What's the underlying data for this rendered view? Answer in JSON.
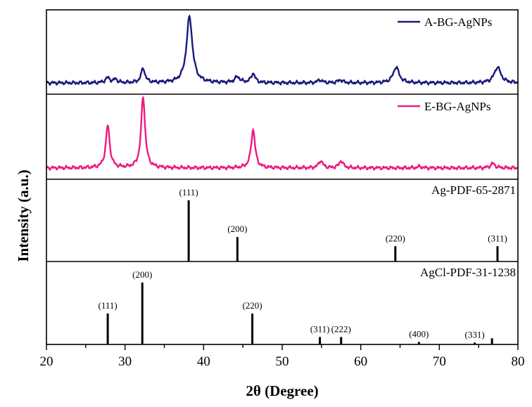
{
  "chart_data": {
    "type": "line",
    "xlabel": "2θ (Degree)",
    "ylabel": "Intensity (a.u.)",
    "xlim": [
      20,
      80
    ],
    "x_ticks": [
      20,
      30,
      40,
      50,
      60,
      70,
      80
    ],
    "panels": [
      {
        "name": "A-BG-AgNPs",
        "kind": "pattern",
        "color": "#1a1a7a",
        "baseline": 0.04,
        "peaks": [
          {
            "x": 27.8,
            "h": 0.07,
            "w": 0.35
          },
          {
            "x": 28.8,
            "h": 0.05,
            "w": 0.25
          },
          {
            "x": 32.3,
            "h": 0.2,
            "w": 0.3
          },
          {
            "x": 38.2,
            "h": 0.92,
            "w": 0.45
          },
          {
            "x": 44.3,
            "h": 0.08,
            "w": 0.4
          },
          {
            "x": 46.3,
            "h": 0.13,
            "w": 0.3
          },
          {
            "x": 54.8,
            "h": 0.04,
            "w": 0.35
          },
          {
            "x": 57.4,
            "h": 0.04,
            "w": 0.35
          },
          {
            "x": 64.5,
            "h": 0.22,
            "w": 0.45
          },
          {
            "x": 77.4,
            "h": 0.22,
            "w": 0.5
          }
        ]
      },
      {
        "name": "E-BG-AgNPs",
        "kind": "pattern",
        "color": "#ee1a82",
        "baseline": 0.04,
        "peaks": [
          {
            "x": 27.8,
            "h": 0.58,
            "w": 0.3
          },
          {
            "x": 32.3,
            "h": 0.98,
            "w": 0.3
          },
          {
            "x": 46.3,
            "h": 0.53,
            "w": 0.3
          },
          {
            "x": 54.9,
            "h": 0.1,
            "w": 0.3
          },
          {
            "x": 57.5,
            "h": 0.1,
            "w": 0.3
          },
          {
            "x": 67.5,
            "h": 0.02,
            "w": 0.3
          },
          {
            "x": 76.8,
            "h": 0.06,
            "w": 0.35
          }
        ]
      },
      {
        "name": "Ag-PDF-65-2871",
        "kind": "sticks",
        "color": "#000000",
        "sticks": [
          {
            "x": 38.1,
            "h": 100,
            "label": "(111)"
          },
          {
            "x": 44.3,
            "h": 40,
            "label": "(200)"
          },
          {
            "x": 64.4,
            "h": 25,
            "label": "(220)"
          },
          {
            "x": 77.4,
            "h": 25,
            "label": "(311)"
          }
        ]
      },
      {
        "name": "AgCl-PDF-31-1238",
        "kind": "sticks",
        "color": "#000000",
        "sticks": [
          {
            "x": 27.8,
            "h": 50,
            "label": "(111)"
          },
          {
            "x": 32.2,
            "h": 100,
            "label": "(200)"
          },
          {
            "x": 46.2,
            "h": 50,
            "label": "(220)"
          },
          {
            "x": 54.8,
            "h": 12,
            "label": "(311)"
          },
          {
            "x": 57.5,
            "h": 12,
            "label": "(222)"
          },
          {
            "x": 67.4,
            "h": 4,
            "label": "(400)"
          },
          {
            "x": 74.5,
            "h": 3,
            "label": "(331)"
          },
          {
            "x": 76.7,
            "h": 10,
            "label": ""
          }
        ]
      }
    ]
  }
}
